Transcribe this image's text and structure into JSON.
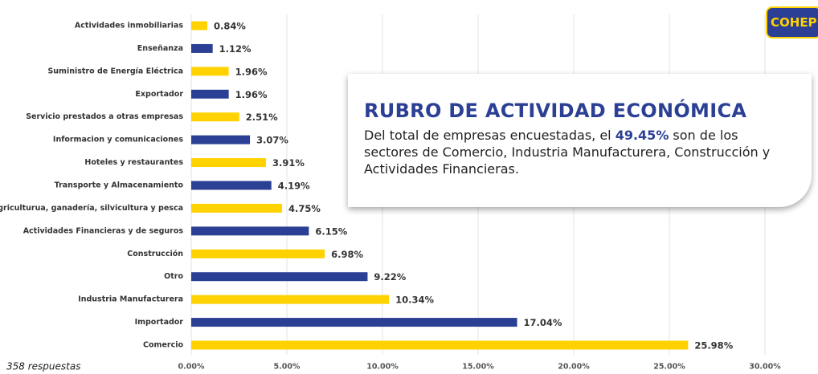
{
  "chart_data": {
    "type": "bar",
    "orientation": "horizontal",
    "categories": [
      "Actividades inmobiliarias",
      "Enseñanza",
      "Suministro de Energía Eléctrica",
      "Exportador",
      "Servicio prestados a otras empresas",
      "Informacion y comunicaciones",
      "Hoteles y restaurantes",
      "Transporte y Almacenamiento",
      "Agriculturua, ganadería, silvicultura y pesca",
      "Actividades Financieras y de seguros",
      "Construcción",
      "Otro",
      "Industria Manufacturera",
      "Importador",
      "Comercio"
    ],
    "values": [
      0.84,
      1.12,
      1.96,
      1.96,
      2.51,
      3.07,
      3.91,
      4.19,
      4.75,
      6.15,
      6.98,
      9.22,
      10.34,
      17.04,
      25.98
    ],
    "value_labels": [
      "0.84%",
      "1.12%",
      "1.96%",
      "1.96%",
      "2.51%",
      "3.07%",
      "3.91%",
      "4.19%",
      "4.75%",
      "6.15%",
      "6.98%",
      "9.22%",
      "10.34%",
      "17.04%",
      "25.98%"
    ],
    "colors": [
      "#FFD200",
      "#2B3F94",
      "#FFD200",
      "#2B3F94",
      "#FFD200",
      "#2B3F94",
      "#FFD200",
      "#2B3F94",
      "#FFD200",
      "#2B3F94",
      "#FFD200",
      "#2B3F94",
      "#FFD200",
      "#2B3F94",
      "#FFD200"
    ],
    "xlim": [
      0,
      30
    ],
    "xticks": [
      {
        "value": 0,
        "label": "0.00%"
      },
      {
        "value": 5,
        "label": "5.00%"
      },
      {
        "value": 10,
        "label": "10.00%"
      },
      {
        "value": 15,
        "label": "15.00%"
      },
      {
        "value": 20,
        "label": "20.00%"
      },
      {
        "value": 25,
        "label": "25.00%"
      },
      {
        "value": 30,
        "label": "30.00%"
      }
    ],
    "grid": true,
    "footnote": "358 respuestas"
  },
  "info_box": {
    "title": "RUBRO DE ACTIVIDAD ECONÓMICA",
    "text_before": "Del total de empresas encuestadas, el ",
    "highlight": "49.45%",
    "text_after": " son de los sectores de Comercio, Industria Manufacturera, Construcción y Actividades Financieras."
  },
  "logo": "COHEP"
}
